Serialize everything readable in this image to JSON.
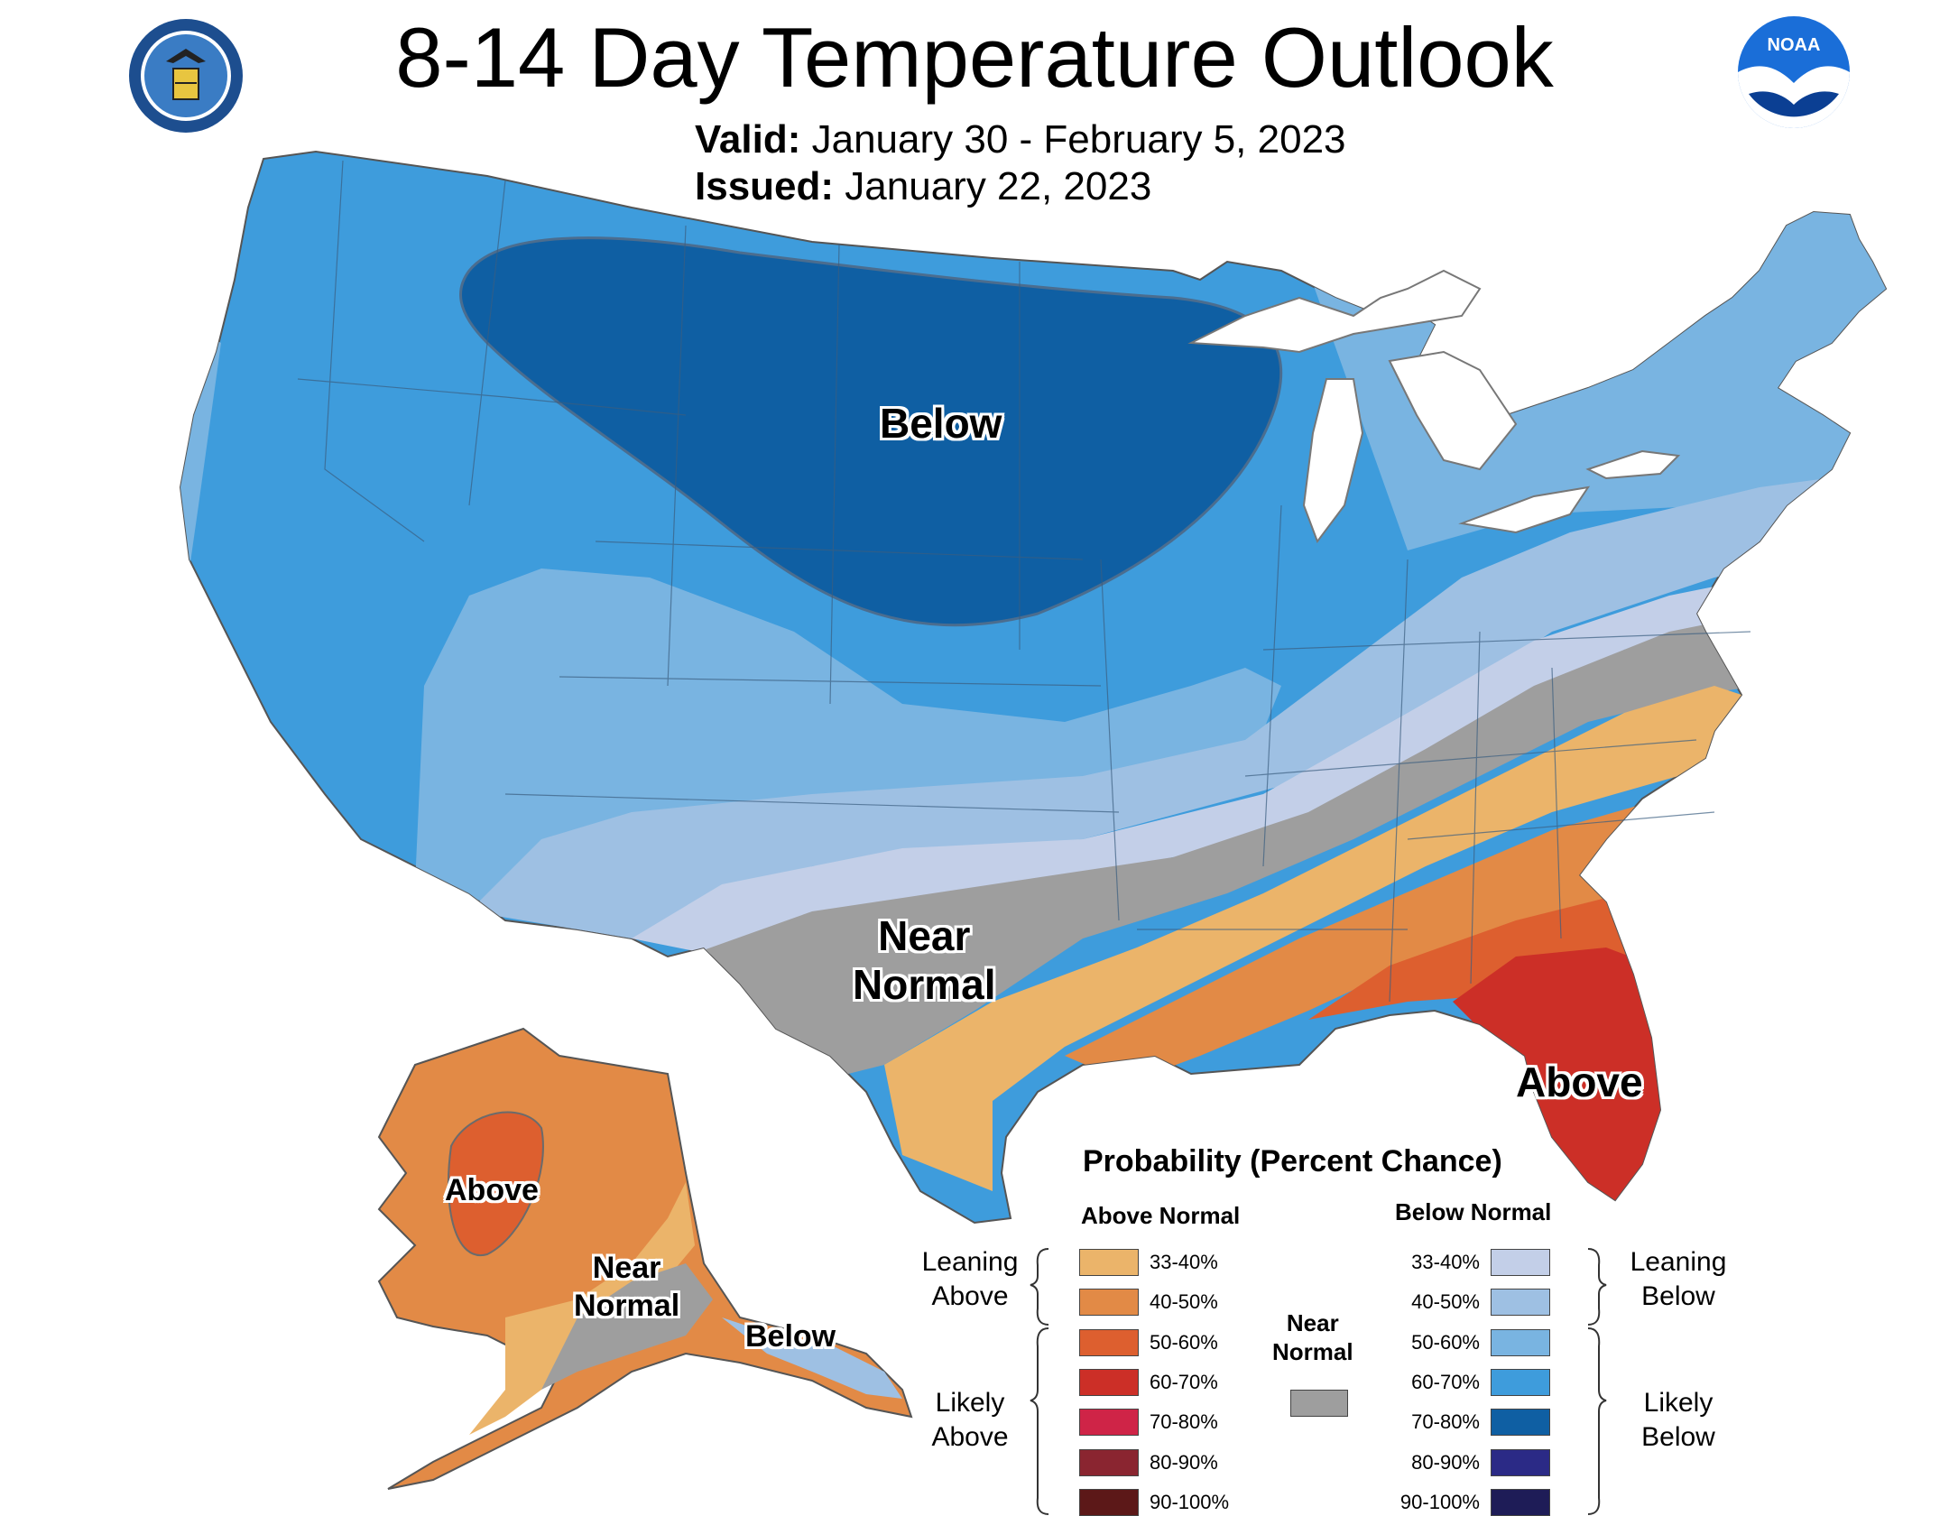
{
  "header": {
    "title": "8-14 Day Temperature Outlook",
    "valid_label": "Valid:",
    "valid_value": "January 30 - February 5, 2023",
    "issued_label": "Issued:",
    "issued_value": "January 22, 2023"
  },
  "logos": {
    "left_icon": "department-of-commerce-seal",
    "right_icon": "noaa-logo",
    "noaa_text": "NOAA"
  },
  "regions": {
    "below": "Below",
    "near_normal_line1": "Near",
    "near_normal_line2": "Normal",
    "above": "Above",
    "ak_above": "Above",
    "ak_near_line1": "Near",
    "ak_near_line2": "Normal",
    "ak_below": "Below"
  },
  "legend": {
    "title": "Probability (Percent Chance)",
    "above_header": "Above Normal",
    "below_header": "Below Normal",
    "near_normal_line1": "Near",
    "near_normal_line2": "Normal",
    "near_normal_color": "#9e9e9e",
    "leaning_above_line1": "Leaning",
    "leaning_above_line2": "Above",
    "likely_above_line1": "Likely",
    "likely_above_line2": "Above",
    "leaning_below_line1": "Leaning",
    "leaning_below_line2": "Below",
    "likely_below_line1": "Likely",
    "likely_below_line2": "Below",
    "above": [
      {
        "range": "33-40%",
        "color": "#ebb46a"
      },
      {
        "range": "40-50%",
        "color": "#e28a46"
      },
      {
        "range": "50-60%",
        "color": "#dd5f2f"
      },
      {
        "range": "60-70%",
        "color": "#cc2f27"
      },
      {
        "range": "70-80%",
        "color": "#cf2447"
      },
      {
        "range": "80-90%",
        "color": "#8a2530"
      },
      {
        "range": "90-100%",
        "color": "#5c1818"
      }
    ],
    "below": [
      {
        "range": "33-40%",
        "color": "#c3cfe8"
      },
      {
        "range": "40-50%",
        "color": "#9ec0e3"
      },
      {
        "range": "50-60%",
        "color": "#79b4e1"
      },
      {
        "range": "60-70%",
        "color": "#3e9cdc"
      },
      {
        "range": "70-80%",
        "color": "#0f5fa3"
      },
      {
        "range": "80-90%",
        "color": "#2b2a86"
      },
      {
        "range": "90-100%",
        "color": "#1e1c57"
      }
    ]
  }
}
